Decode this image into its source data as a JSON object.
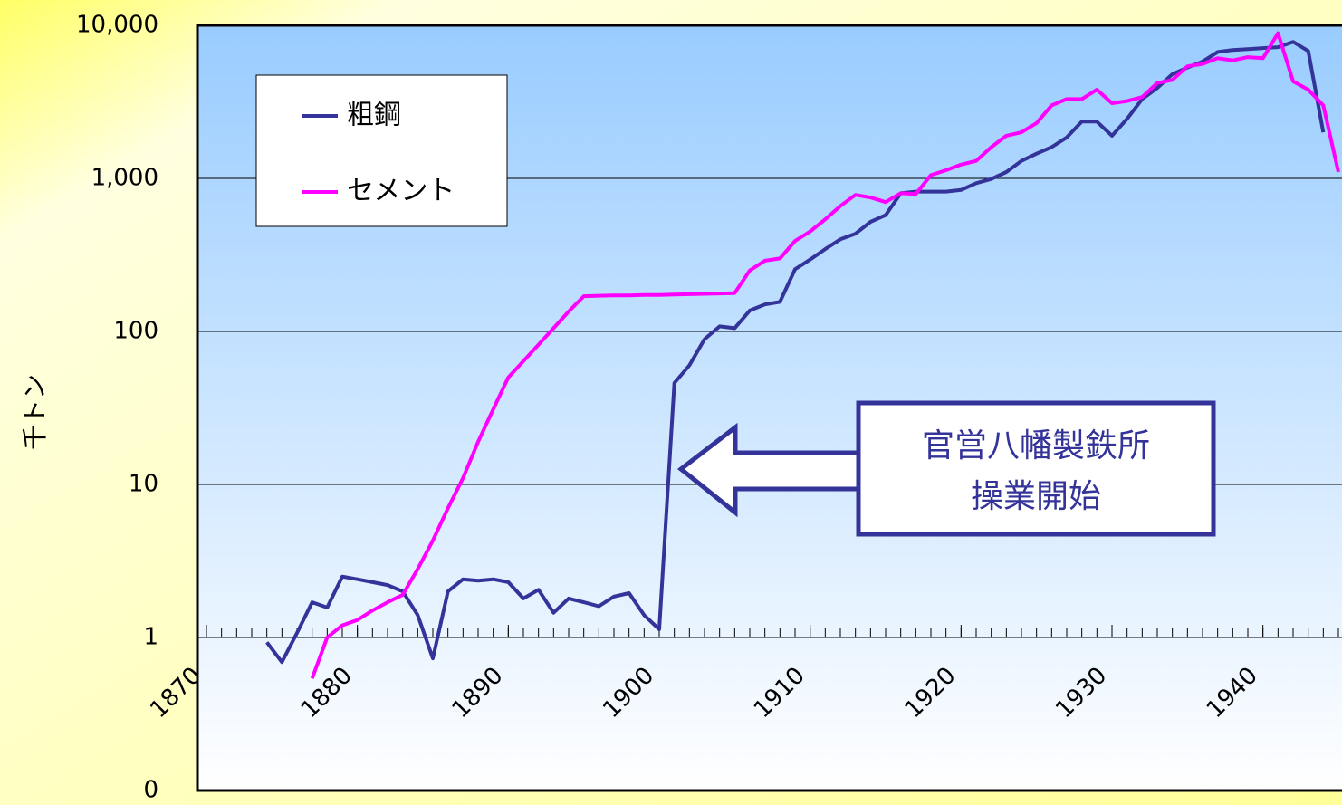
{
  "chart_data": {
    "type": "line",
    "y_label": "千トン",
    "log_scale_y": true,
    "grid": true,
    "legend_position": "upper left",
    "xlim": [
      1869.4,
      1945.3
    ],
    "xticks": [
      1870,
      1880,
      1890,
      1900,
      1910,
      1920,
      1930,
      1940
    ],
    "ylim": [
      0.1,
      10000
    ],
    "yticks": [
      {
        "value": 0.1,
        "label": "0"
      },
      1,
      10,
      100,
      {
        "value": 1000,
        "label": "1,000"
      },
      {
        "value": 10000,
        "label": "10,000"
      }
    ],
    "series": [
      {
        "name": "粗鋼",
        "color": "#333399",
        "x": [
          1874,
          1875,
          1876,
          1877,
          1878,
          1879,
          1880,
          1881,
          1882,
          1883,
          1884,
          1885,
          1886,
          1887,
          1888,
          1889,
          1890,
          1891,
          1892,
          1893,
          1894,
          1895,
          1896,
          1897,
          1898,
          1899,
          1900,
          1901,
          1902,
          1903,
          1904,
          1905,
          1906,
          1907,
          1908,
          1909,
          1910,
          1911,
          1912,
          1913,
          1914,
          1915,
          1916,
          1917,
          1918,
          1919,
          1920,
          1921,
          1922,
          1923,
          1924,
          1925,
          1926,
          1927,
          1928,
          1929,
          1930,
          1931,
          1932,
          1933,
          1934,
          1935,
          1936,
          1937,
          1938,
          1939,
          1940,
          1941,
          1942,
          1943,
          1944
        ],
        "values": [
          0.93,
          0.69,
          1.07,
          1.7,
          1.57,
          2.5,
          2.4,
          2.3,
          2.2,
          2.0,
          1.4,
          0.73,
          2.0,
          2.4,
          2.35,
          2.4,
          2.3,
          1.8,
          2.05,
          1.45,
          1.8,
          1.7,
          1.6,
          1.85,
          1.95,
          1.4,
          1.13,
          46,
          60,
          89,
          108,
          105,
          137,
          150,
          156,
          255,
          295,
          345,
          400,
          435,
          520,
          575,
          800,
          820,
          820,
          820,
          840,
          930,
          990,
          1100,
          1300,
          1450,
          1600,
          1850,
          2350,
          2350,
          1900,
          2450,
          3300,
          3900,
          4800,
          5300,
          5800,
          6700,
          6900,
          7000,
          7100,
          7200,
          7800,
          6800,
          2000
        ]
      },
      {
        "name": "セメント",
        "color": "#ff00ff",
        "x": [
          1877,
          1878,
          1879,
          1880,
          1881,
          1882,
          1883,
          1884,
          1885,
          1886,
          1887,
          1888,
          1889,
          1890,
          1891,
          1892,
          1893,
          1894,
          1895,
          1896,
          1897,
          1898,
          1899,
          1900,
          1901,
          1902,
          1903,
          1904,
          1905,
          1906,
          1907,
          1908,
          1909,
          1910,
          1911,
          1912,
          1913,
          1914,
          1915,
          1916,
          1917,
          1918,
          1919,
          1920,
          1921,
          1922,
          1923,
          1924,
          1925,
          1926,
          1927,
          1928,
          1929,
          1930,
          1931,
          1932,
          1933,
          1934,
          1935,
          1936,
          1937,
          1938,
          1939,
          1940,
          1941,
          1942,
          1943,
          1944,
          1945
        ],
        "values": [
          0.54,
          1.0,
          1.2,
          1.3,
          1.5,
          1.7,
          1.9,
          2.8,
          4.3,
          7,
          11,
          19,
          31,
          50,
          64,
          82,
          105,
          135,
          170,
          171,
          172,
          172,
          173,
          173,
          174,
          175,
          176,
          177,
          178,
          250,
          290,
          300,
          390,
          450,
          540,
          660,
          780,
          750,
          700,
          800,
          790,
          1050,
          1130,
          1230,
          1300,
          1600,
          1900,
          2000,
          2300,
          3000,
          3300,
          3300,
          3800,
          3100,
          3200,
          3400,
          4200,
          4400,
          5400,
          5600,
          6100,
          5900,
          6200,
          6100,
          8900,
          4300,
          3800,
          3000,
          1100
        ]
      }
    ],
    "annotation": [
      "官営八幡製鉄所",
      "操業開始"
    ]
  }
}
